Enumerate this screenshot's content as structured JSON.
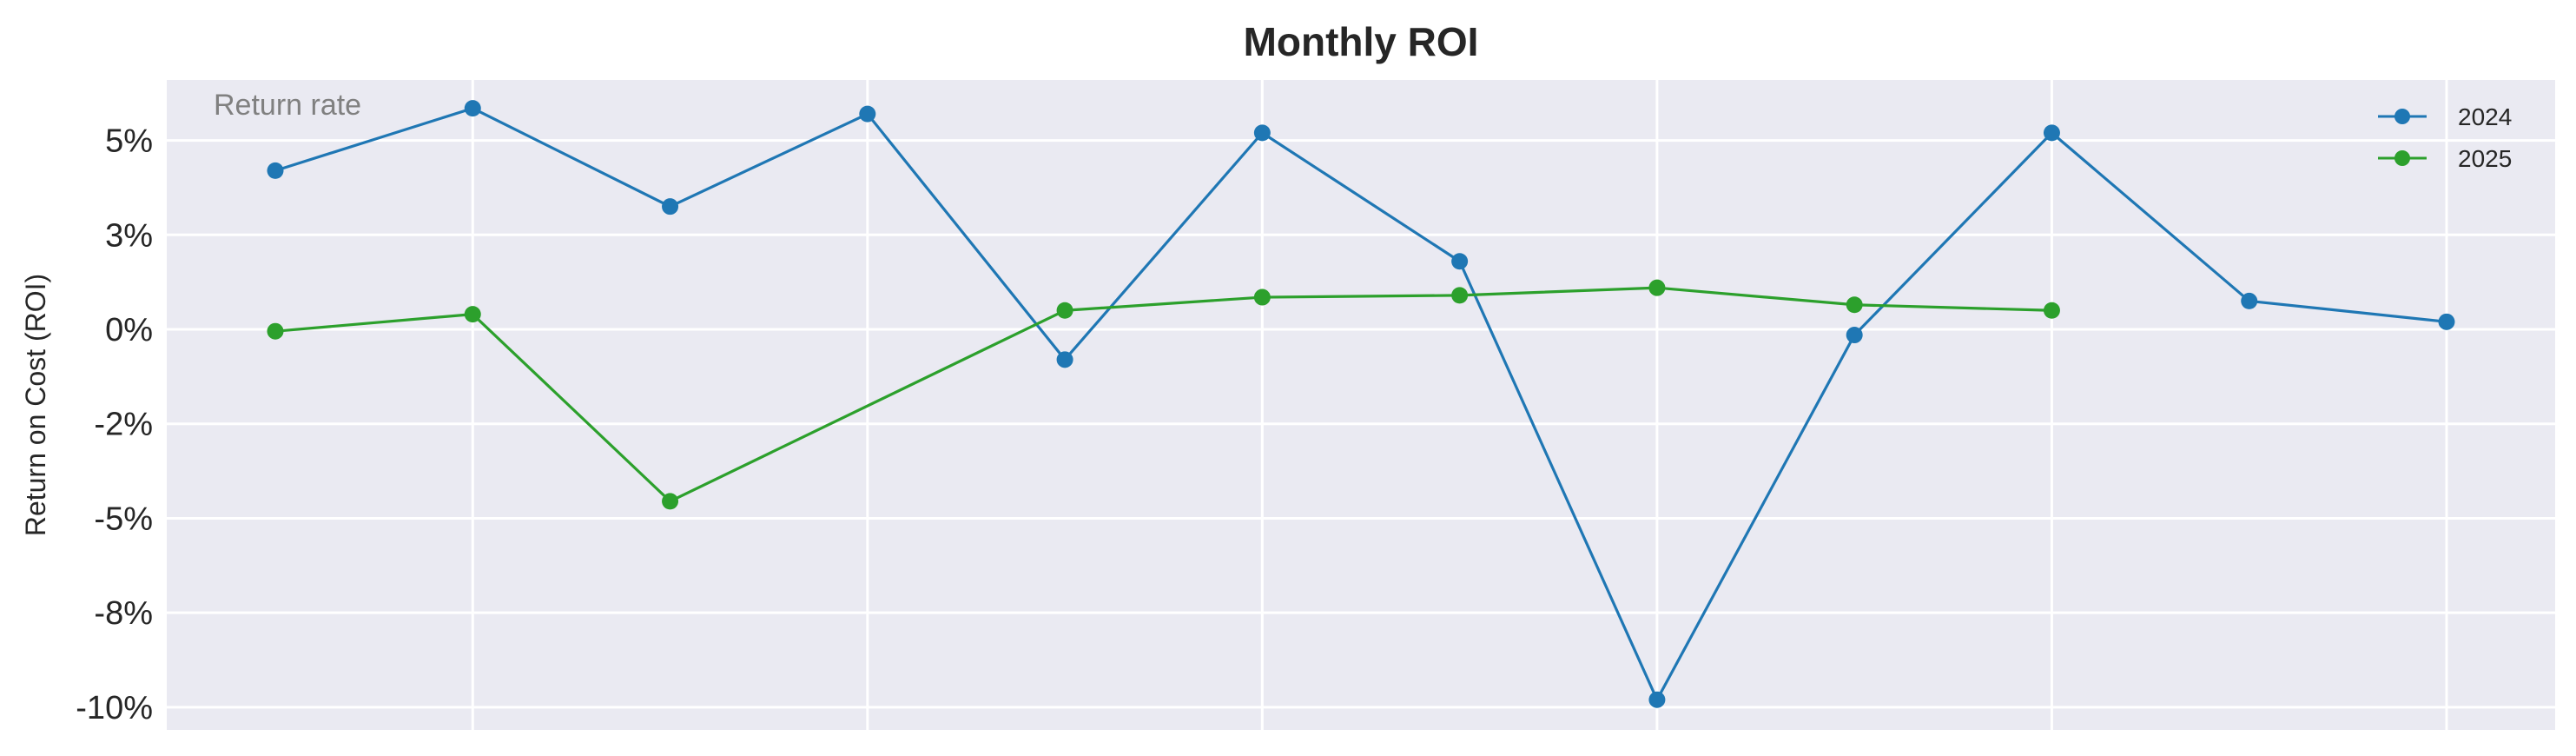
{
  "chart_data": {
    "type": "line",
    "title": "Monthly ROI",
    "ylabel": "Return on Cost (ROI)",
    "xlabel": "",
    "annotation": "Return rate",
    "x": [
      1,
      2,
      3,
      4,
      5,
      6,
      7,
      8,
      9,
      10,
      11,
      12
    ],
    "xlim": [
      0.45,
      12.55
    ],
    "ylim": [
      -10.6,
      6.6
    ],
    "yticks": [
      5,
      2.5,
      0,
      -2.5,
      -5,
      -7.5,
      -10
    ],
    "ytick_labels": [
      "5%",
      "3%",
      "0%",
      "-2%",
      "-5%",
      "-8%",
      "-10%"
    ],
    "xgrid": [
      2,
      4,
      6,
      8,
      10,
      12
    ],
    "grid": true,
    "legend_position": "top-right",
    "series": [
      {
        "name": "2024",
        "color": "#1f77b4",
        "values": [
          4.2,
          5.85,
          3.25,
          5.7,
          -0.8,
          5.2,
          1.8,
          -9.8,
          -0.15,
          5.2,
          0.75,
          0.2
        ]
      },
      {
        "name": "2025",
        "color": "#2ca02c",
        "values": [
          -0.05,
          0.4,
          -4.55,
          null,
          0.5,
          0.85,
          0.9,
          1.1,
          0.65,
          0.5,
          null,
          null
        ]
      }
    ]
  }
}
